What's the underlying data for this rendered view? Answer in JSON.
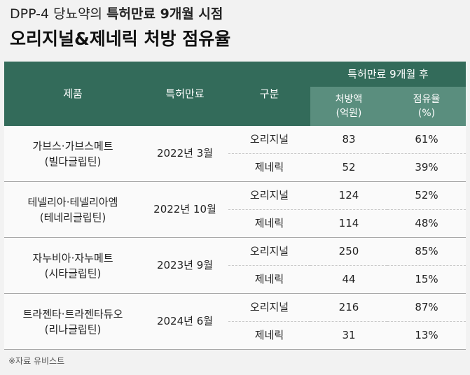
{
  "header": {
    "title_line1_prefix": "DPP-4 당뇨약의 ",
    "title_line1_bold": "특허만료 9개월 시점",
    "title_line2": "오리지널&제네릭 처방 점유율"
  },
  "table": {
    "col_product": "제품",
    "col_expiry": "특허만료",
    "col_type": "구분",
    "col_after_group": "특허만료 9개월 후",
    "col_amount": "처방액",
    "col_amount_unit": "(억원)",
    "col_share": "점유율",
    "col_share_unit": "(%)",
    "groups": [
      {
        "product": "가브스·가브스메트",
        "ingredient": "(빌다글립틴)",
        "expiry": "2022년 3월",
        "rows": [
          {
            "type": "오리지널",
            "amount": "83",
            "share": "61%"
          },
          {
            "type": "제네릭",
            "amount": "52",
            "share": "39%"
          }
        ]
      },
      {
        "product": "테넬리아·테넬리아엠",
        "ingredient": "(테네리글립틴)",
        "expiry": "2022년 10월",
        "rows": [
          {
            "type": "오리지널",
            "amount": "124",
            "share": "52%"
          },
          {
            "type": "제네릭",
            "amount": "114",
            "share": "48%"
          }
        ]
      },
      {
        "product": "자누비아·자누메트",
        "ingredient": "(시타글립틴)",
        "expiry": "2023년 9월",
        "rows": [
          {
            "type": "오리지널",
            "amount": "250",
            "share": "85%"
          },
          {
            "type": "제네릭",
            "amount": "44",
            "share": "15%"
          }
        ]
      },
      {
        "product": "트라젠타·트라젠타듀오",
        "ingredient": "(리나글립틴)",
        "expiry": "2024년 6월",
        "rows": [
          {
            "type": "오리지널",
            "amount": "216",
            "share": "87%"
          },
          {
            "type": "제네릭",
            "amount": "31",
            "share": "13%"
          }
        ]
      }
    ]
  },
  "source": "※자료 유비스트",
  "colors": {
    "header_dark": "#336b5a",
    "header_light": "#5a8e7e",
    "background": "#f2f2f2"
  }
}
